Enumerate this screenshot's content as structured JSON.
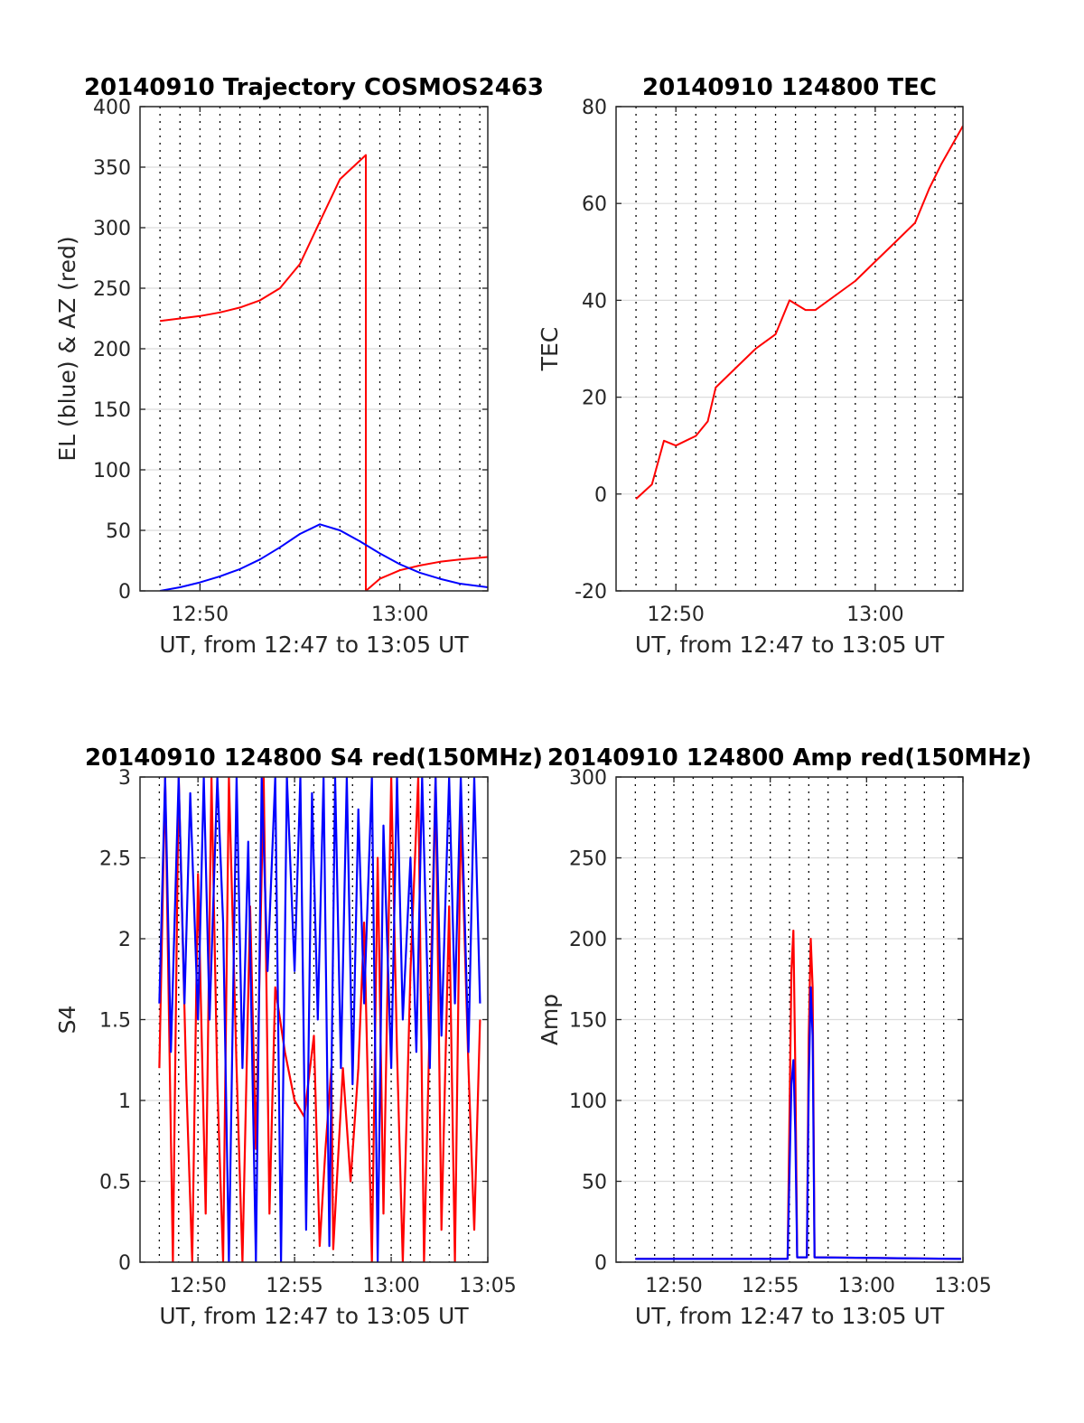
{
  "colors": {
    "el": "#0000ff",
    "az": "#ff0000",
    "red": "#ff0000",
    "blue": "#0000ff"
  },
  "chart_data": [
    {
      "type": "line",
      "title": "20140910 Trajectory COSMOS2463",
      "xlabel": "UT, from 12:47 to 13:05 UT",
      "ylabel": "EL (blue) & AZ (red)",
      "xlim_minutes": [
        47,
        64.4
      ],
      "ylim": [
        0,
        400
      ],
      "yticks": [
        "0",
        "50",
        "100",
        "150",
        "200",
        "250",
        "300",
        "350",
        "400"
      ],
      "xtick_labels": [
        {
          "min": 50,
          "label": "12:50"
        },
        {
          "min": 60,
          "label": "13:00"
        }
      ],
      "grid": "horizontal solid, vertical dotted every minute",
      "series": [
        {
          "color": "red",
          "points": [
            [
              48,
              223
            ],
            [
              49,
              225
            ],
            [
              50,
              227
            ],
            [
              51,
              230
            ],
            [
              52,
              234
            ],
            [
              53,
              240
            ],
            [
              54,
              250
            ],
            [
              55,
              270
            ],
            [
              56,
              305
            ],
            [
              57,
              340
            ],
            [
              58.3,
              360
            ],
            [
              58.3,
              0
            ],
            [
              59,
              10
            ],
            [
              60,
              17
            ],
            [
              61,
              21
            ],
            [
              62,
              24
            ],
            [
              63,
              26
            ],
            [
              64.4,
              28
            ]
          ]
        },
        {
          "color": "blue",
          "points": [
            [
              48,
              0
            ],
            [
              49,
              3
            ],
            [
              50,
              7
            ],
            [
              51,
              12
            ],
            [
              52,
              18
            ],
            [
              53,
              26
            ],
            [
              54,
              36
            ],
            [
              55,
              47
            ],
            [
              56,
              55
            ],
            [
              57,
              50
            ],
            [
              58,
              41
            ],
            [
              59,
              31
            ],
            [
              60,
              22
            ],
            [
              61,
              15
            ],
            [
              62,
              10
            ],
            [
              63,
              6
            ],
            [
              64.4,
              3
            ]
          ]
        }
      ]
    },
    {
      "type": "line",
      "title": "20140910 124800 TEC",
      "xlabel": "UT, from 12:47 to 13:05 UT",
      "ylabel": "TEC",
      "xlim_minutes": [
        47,
        64.4
      ],
      "ylim": [
        -20,
        80
      ],
      "yticks": [
        "-20",
        "0",
        "20",
        "40",
        "60",
        "80"
      ],
      "xtick_labels": [
        {
          "min": 50,
          "label": "12:50"
        },
        {
          "min": 60,
          "label": "13:00"
        }
      ],
      "grid": "horizontal solid, vertical dotted every minute",
      "series": [
        {
          "color": "red",
          "points": [
            [
              48,
              -1
            ],
            [
              48.8,
              2
            ],
            [
              49.4,
              11
            ],
            [
              50,
              10
            ],
            [
              51,
              12
            ],
            [
              51.6,
              15
            ],
            [
              52,
              22
            ],
            [
              53,
              26
            ],
            [
              54,
              30
            ],
            [
              55,
              33
            ],
            [
              55.7,
              40
            ],
            [
              56.5,
              38
            ],
            [
              57,
              38
            ],
            [
              58,
              41
            ],
            [
              59,
              44
            ],
            [
              60,
              48
            ],
            [
              61,
              52
            ],
            [
              62,
              56
            ],
            [
              62.7,
              63
            ],
            [
              63.3,
              68
            ],
            [
              64.4,
              76
            ]
          ]
        }
      ]
    },
    {
      "type": "line",
      "title": "20140910 124800 S4 red(150MHz)",
      "xlabel": "UT, from 12:47 to 13:05 UT",
      "ylabel": "S4",
      "xlim_minutes": [
        47,
        65
      ],
      "ylim": [
        0,
        3
      ],
      "yticks": [
        "0",
        "0.5",
        "1",
        "1.5",
        "2",
        "2.5",
        "3"
      ],
      "xtick_labels": [
        {
          "min": 50,
          "label": "12:50"
        },
        {
          "min": 55,
          "label": "12:55"
        },
        {
          "min": 60,
          "label": "13:00"
        },
        {
          "min": 65,
          "label": "13:05"
        }
      ],
      "grid": "horizontal solid, vertical dotted every minute",
      "series": [
        {
          "color": "red",
          "points": [
            [
              48,
              1.2
            ],
            [
              48.3,
              3
            ],
            [
              48.7,
              0
            ],
            [
              49,
              3
            ],
            [
              49.4,
              1.1
            ],
            [
              49.7,
              0
            ],
            [
              50,
              2.4
            ],
            [
              50.4,
              0.3
            ],
            [
              50.7,
              3
            ],
            [
              51,
              1.1
            ],
            [
              51.3,
              0
            ],
            [
              51.6,
              3
            ],
            [
              52,
              1.2
            ],
            [
              52.3,
              0
            ],
            [
              52.7,
              2.2
            ],
            [
              53,
              0.7
            ],
            [
              53.4,
              3
            ],
            [
              53.7,
              0.3
            ],
            [
              54,
              1.7
            ],
            [
              54.5,
              1.3
            ],
            [
              55,
              1
            ],
            [
              55.5,
              0.9
            ],
            [
              56,
              1.4
            ],
            [
              56.3,
              0.1
            ],
            [
              56.6,
              0.7
            ],
            [
              56.9,
              1.2
            ],
            [
              57,
              0.08
            ],
            [
              57.5,
              1.2
            ],
            [
              57.9,
              0.5
            ],
            [
              58.3,
              1.2
            ],
            [
              58.6,
              2.1
            ],
            [
              59,
              0
            ],
            [
              59.3,
              2.5
            ],
            [
              59.6,
              0.3
            ],
            [
              60,
              3
            ],
            [
              60.3,
              1.3
            ],
            [
              60.6,
              0
            ],
            [
              61,
              1.8
            ],
            [
              61.4,
              3
            ],
            [
              61.7,
              0
            ],
            [
              62,
              1.5
            ],
            [
              62.3,
              3
            ],
            [
              62.6,
              0.2
            ],
            [
              63,
              2.2
            ],
            [
              63.3,
              0
            ],
            [
              63.6,
              2.8
            ],
            [
              64,
              1.2
            ],
            [
              64.3,
              0.2
            ],
            [
              64.6,
              1.5
            ]
          ]
        },
        {
          "color": "blue",
          "points": [
            [
              48,
              1.6
            ],
            [
              48.3,
              3
            ],
            [
              48.6,
              1.3
            ],
            [
              49,
              3
            ],
            [
              49.3,
              1.6
            ],
            [
              49.6,
              2.9
            ],
            [
              50,
              1.5
            ],
            [
              50.3,
              3
            ],
            [
              50.6,
              1.5
            ],
            [
              51,
              3
            ],
            [
              51.3,
              2.1
            ],
            [
              51.6,
              0
            ],
            [
              52,
              3
            ],
            [
              52.3,
              1.2
            ],
            [
              52.6,
              2.6
            ],
            [
              53,
              0
            ],
            [
              53.3,
              3
            ],
            [
              53.6,
              1.8
            ],
            [
              54,
              3
            ],
            [
              54.3,
              0
            ],
            [
              54.6,
              3
            ],
            [
              55,
              1.8
            ],
            [
              55.3,
              3
            ],
            [
              55.6,
              0.2
            ],
            [
              55.9,
              2.9
            ],
            [
              56.2,
              1.5
            ],
            [
              56.5,
              3
            ],
            [
              56.8,
              0.1
            ],
            [
              57.1,
              3
            ],
            [
              57.4,
              1.2
            ],
            [
              57.7,
              3
            ],
            [
              58,
              1.1
            ],
            [
              58.3,
              2.8
            ],
            [
              58.6,
              1.6
            ],
            [
              59,
              3
            ],
            [
              59.3,
              0
            ],
            [
              59.6,
              2.7
            ],
            [
              60,
              1.2
            ],
            [
              60.3,
              3
            ],
            [
              60.6,
              1.5
            ],
            [
              61,
              2.5
            ],
            [
              61.3,
              1.3
            ],
            [
              61.6,
              3
            ],
            [
              62,
              1.2
            ],
            [
              62.3,
              3
            ],
            [
              62.6,
              1.4
            ],
            [
              63,
              3
            ],
            [
              63.3,
              1.6
            ],
            [
              63.6,
              3
            ],
            [
              64,
              1.3
            ],
            [
              64.3,
              3
            ],
            [
              64.6,
              1.6
            ]
          ]
        }
      ]
    },
    {
      "type": "line",
      "title": "20140910 124800 Amp red(150MHz)",
      "xlabel": "UT, from 12:47 to 13:05 UT",
      "ylabel": "Amp",
      "xlim_minutes": [
        47,
        65
      ],
      "ylim": [
        0,
        300
      ],
      "yticks": [
        "0",
        "50",
        "100",
        "150",
        "200",
        "250",
        "300"
      ],
      "xtick_labels": [
        {
          "min": 50,
          "label": "12:50"
        },
        {
          "min": 55,
          "label": "12:55"
        },
        {
          "min": 60,
          "label": "13:00"
        },
        {
          "min": 65,
          "label": "13:05"
        }
      ],
      "grid": "horizontal solid, vertical dotted every minute",
      "series": [
        {
          "color": "red",
          "points": [
            [
              48,
              2
            ],
            [
              55.9,
              2
            ],
            [
              56.1,
              180
            ],
            [
              56.2,
              205
            ],
            [
              56.3,
              120
            ],
            [
              56.4,
              3
            ],
            [
              56.9,
              3
            ],
            [
              57,
              140
            ],
            [
              57.1,
              200
            ],
            [
              57.2,
              170
            ],
            [
              57.3,
              3
            ],
            [
              64.9,
              2
            ]
          ]
        },
        {
          "color": "blue",
          "points": [
            [
              48,
              2
            ],
            [
              55.9,
              2
            ],
            [
              56.1,
              110
            ],
            [
              56.2,
              125
            ],
            [
              56.3,
              80
            ],
            [
              56.4,
              3
            ],
            [
              56.9,
              3
            ],
            [
              57,
              110
            ],
            [
              57.1,
              170
            ],
            [
              57.2,
              140
            ],
            [
              57.3,
              3
            ],
            [
              64.9,
              2
            ]
          ]
        }
      ]
    }
  ]
}
